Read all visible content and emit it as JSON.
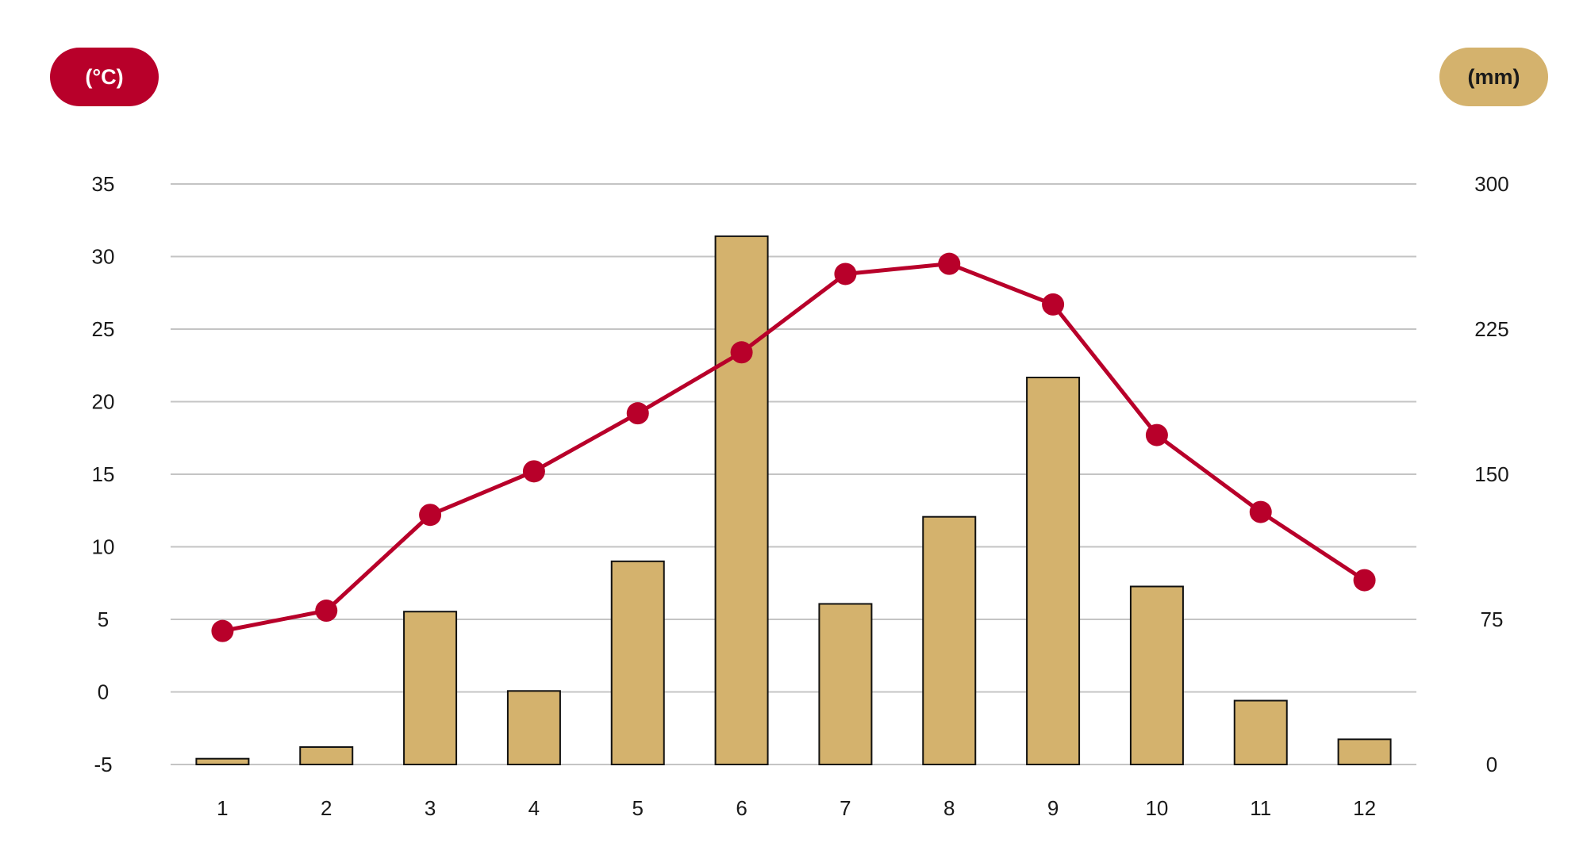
{
  "left_unit_label": "(°C)",
  "right_unit_label": "(mm)",
  "colors": {
    "temperature": "#b8002a",
    "precipitation": "#d4b26d",
    "bar_outline": "#111111",
    "grid": "#c4c4c4"
  },
  "chart_data": {
    "type": "bar",
    "categories": [
      "1",
      "2",
      "3",
      "4",
      "5",
      "6",
      "7",
      "8",
      "9",
      "10",
      "11",
      "12"
    ],
    "series": [
      {
        "type": "bar",
        "axis": "right",
        "values": [
          3,
          9,
          79,
          38,
          105,
          273,
          83,
          128,
          200,
          92,
          33,
          13
        ]
      },
      {
        "type": "line",
        "axis": "left",
        "values": [
          4.2,
          5.6,
          12.2,
          15.2,
          19.2,
          23.4,
          28.8,
          29.5,
          26.7,
          17.7,
          12.4,
          7.7
        ]
      }
    ],
    "y_left": {
      "range": [
        -5,
        35
      ],
      "ticks": [
        "35",
        "30",
        "25",
        "20",
        "15",
        "10",
        "5",
        "0",
        "-5"
      ]
    },
    "y_right": {
      "range": [
        0,
        300
      ],
      "ticks": [
        "300",
        "225",
        "150",
        "75",
        "0"
      ]
    },
    "grid": true,
    "legend": "none"
  }
}
